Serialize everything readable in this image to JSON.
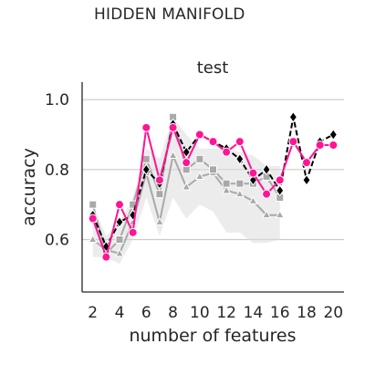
{
  "figure_title": "HIDDEN MANIFOLD",
  "chart_data": {
    "type": "line",
    "title": "test",
    "xlabel": "number of features",
    "ylabel": "accuracy",
    "xlim": [
      1.2,
      20.8
    ],
    "ylim": [
      0.45,
      1.05
    ],
    "xticks": [
      2,
      4,
      6,
      8,
      10,
      12,
      14,
      16,
      18,
      20
    ],
    "yticks": [
      0.6,
      0.8,
      1.0
    ],
    "ytick_labels": [
      "0.6",
      "0.8",
      "1.0"
    ],
    "grid": "horizontal",
    "band": {
      "x": [
        2,
        3,
        4,
        5,
        6,
        7,
        8,
        9,
        10,
        11,
        12,
        13,
        14,
        15,
        16
      ],
      "lower": [
        0.55,
        0.55,
        0.53,
        0.6,
        0.72,
        0.61,
        0.72,
        0.66,
        0.7,
        0.68,
        0.62,
        0.62,
        0.59,
        0.59,
        0.6
      ],
      "upper": [
        0.7,
        0.61,
        0.65,
        0.72,
        0.86,
        0.83,
        0.95,
        0.9,
        0.86,
        0.86,
        0.86,
        0.85,
        0.84,
        0.81,
        0.81
      ]
    },
    "series": [
      {
        "color": "#a9a9a9",
        "marker": "triangle",
        "dash": "solid",
        "x": [
          2,
          3,
          4,
          5,
          6,
          7,
          8,
          9,
          10,
          11,
          12,
          13,
          14,
          15,
          16
        ],
        "values": [
          0.6,
          0.57,
          0.56,
          0.65,
          0.79,
          0.65,
          0.84,
          0.75,
          0.78,
          0.79,
          0.74,
          0.73,
          0.71,
          0.67,
          0.67
        ]
      },
      {
        "color": "#a9a9a9",
        "marker": "square",
        "dash": "solid",
        "x": [
          2,
          3,
          4,
          5,
          6,
          7,
          8,
          9,
          10,
          11,
          12,
          13,
          14,
          15,
          16
        ],
        "values": [
          0.7,
          0.56,
          0.6,
          0.7,
          0.83,
          0.73,
          0.95,
          0.8,
          0.83,
          0.8,
          0.76,
          0.76,
          0.76,
          0.78,
          0.72
        ]
      },
      {
        "color": "#000000",
        "marker": "diamond",
        "dash": "dashed",
        "x": [
          2,
          3,
          4,
          5,
          6,
          7,
          8,
          9,
          10,
          11,
          12,
          13,
          14,
          15,
          16,
          17,
          18,
          19,
          20
        ],
        "values": [
          0.67,
          0.58,
          0.65,
          0.67,
          0.8,
          0.76,
          0.93,
          0.85,
          0.9,
          0.88,
          0.86,
          0.83,
          0.77,
          0.8,
          0.74,
          0.95,
          0.77,
          0.88,
          0.9
        ]
      },
      {
        "color": "#ff1493",
        "marker": "circle",
        "dash": "solid",
        "x": [
          2,
          3,
          4,
          5,
          6,
          7,
          8,
          9,
          10,
          11,
          12,
          13,
          14,
          15,
          16,
          17,
          18,
          19,
          20
        ],
        "values": [
          0.66,
          0.55,
          0.7,
          0.62,
          0.92,
          0.77,
          0.92,
          0.82,
          0.9,
          0.88,
          0.85,
          0.88,
          0.79,
          0.73,
          0.77,
          0.88,
          0.82,
          0.87,
          0.87
        ]
      }
    ]
  }
}
